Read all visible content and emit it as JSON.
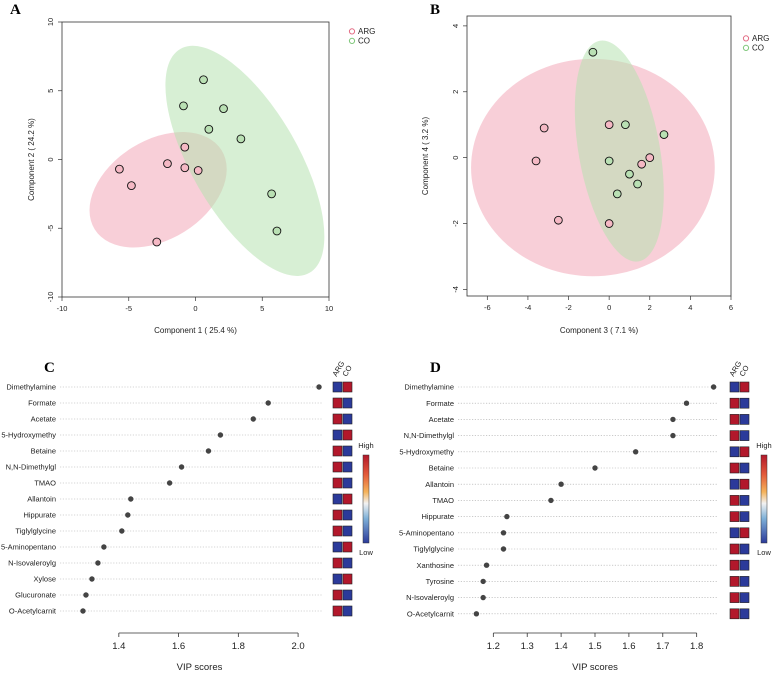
{
  "colors": {
    "arg": "#e36d85",
    "co": "#7fc77a",
    "arg_fill": "#f5b8c4",
    "co_fill": "#b9e0b3",
    "ellipse_arg": "#f3a8b8",
    "ellipse_co": "#b7e2b0",
    "high": "#b2182b",
    "low": "#2b3a9a",
    "dot": "#444444"
  },
  "chart_data": [
    {
      "id": "A",
      "letter": "A",
      "type": "scatter",
      "xlabel": "Component 1 ( 25.4 %)",
      "ylabel": "Component 2 ( 24.2 %)",
      "xlim": [
        -10,
        10
      ],
      "ylim": [
        -10,
        10
      ],
      "xticks": [
        -10,
        -5,
        0,
        5,
        10
      ],
      "yticks": [
        -10,
        -5,
        0,
        5,
        10
      ],
      "legend": [
        {
          "label": "ARG",
          "group": "arg"
        },
        {
          "label": "CO",
          "group": "co"
        }
      ],
      "series": [
        {
          "name": "ARG",
          "group": "arg",
          "points": [
            [
              -5.7,
              -0.7
            ],
            [
              -4.8,
              -1.9
            ],
            [
              -2.1,
              -0.3
            ],
            [
              -0.8,
              0.9
            ],
            [
              -0.8,
              -0.6
            ],
            [
              0.2,
              -0.8
            ],
            [
              -2.9,
              -6.0
            ]
          ]
        },
        {
          "name": "CO",
          "group": "co",
          "points": [
            [
              0.6,
              5.8
            ],
            [
              2.1,
              3.7
            ],
            [
              -0.9,
              3.9
            ],
            [
              1.0,
              2.2
            ],
            [
              3.4,
              1.5
            ],
            [
              5.7,
              -2.5
            ],
            [
              6.1,
              -5.2
            ]
          ]
        }
      ],
      "ellipses": [
        {
          "group": "arg",
          "cx": -2.8,
          "cy": -2.2,
          "rx": 5.6,
          "ry": 3.6,
          "angle": 32
        },
        {
          "group": "co",
          "cx": 3.7,
          "cy": -0.1,
          "rx": 4.0,
          "ry": 9.4,
          "angle": 30
        }
      ]
    },
    {
      "id": "B",
      "letter": "B",
      "type": "scatter",
      "xlabel": "Component 3 ( 7.1 %)",
      "ylabel": "Component 4 ( 3.2 %)",
      "xlim": [
        -7,
        6
      ],
      "ylim": [
        -4.2,
        4.3
      ],
      "xticks": [
        -6,
        -4,
        -2,
        0,
        2,
        4,
        6
      ],
      "yticks": [
        -4,
        -2,
        0,
        2,
        4
      ],
      "legend": [
        {
          "label": "ARG",
          "group": "arg"
        },
        {
          "label": "CO",
          "group": "co"
        }
      ],
      "series": [
        {
          "name": "ARG",
          "group": "arg",
          "points": [
            [
              -3.2,
              0.9
            ],
            [
              -3.6,
              -0.1
            ],
            [
              -2.5,
              -1.9
            ],
            [
              0.0,
              1.0
            ],
            [
              1.6,
              -0.2
            ],
            [
              2.0,
              0.0
            ],
            [
              0.0,
              -2.0
            ]
          ]
        },
        {
          "name": "CO",
          "group": "co",
          "points": [
            [
              -0.8,
              3.2
            ],
            [
              0.8,
              1.0
            ],
            [
              0.0,
              -0.1
            ],
            [
              1.0,
              -0.5
            ],
            [
              0.4,
              -1.1
            ],
            [
              1.4,
              -0.8
            ],
            [
              2.7,
              0.7
            ]
          ]
        }
      ],
      "ellipses": [
        {
          "group": "arg",
          "cx": -0.8,
          "cy": -0.3,
          "rx": 6.0,
          "ry": 3.3,
          "angle": 0
        },
        {
          "group": "co",
          "cx": 0.5,
          "cy": 0.2,
          "rx": 2.0,
          "ry": 3.4,
          "angle": 10
        }
      ]
    },
    {
      "id": "C",
      "letter": "C",
      "type": "dot",
      "xlabel": "VIP scores",
      "xlim": [
        1.26,
        2.08
      ],
      "xticks": [
        1.4,
        1.6,
        1.8,
        2.0
      ],
      "tick_labels": [
        "1.4",
        "1.6",
        "1.8",
        "2.0"
      ],
      "group_labels": [
        "ARG",
        "CO"
      ],
      "scale_high": "High",
      "scale_low": "Low",
      "items": [
        {
          "label": "Dimethylamine",
          "vip": 2.07,
          "arg": "low",
          "co": "high"
        },
        {
          "label": "Formate",
          "vip": 1.9,
          "arg": "high",
          "co": "low"
        },
        {
          "label": "Acetate",
          "vip": 1.85,
          "arg": "high",
          "co": "low"
        },
        {
          "label": "5-Hydroxymethy",
          "vip": 1.74,
          "arg": "low",
          "co": "high"
        },
        {
          "label": "Betaine",
          "vip": 1.7,
          "arg": "high",
          "co": "low"
        },
        {
          "label": "N,N-Dimethylgl",
          "vip": 1.61,
          "arg": "high",
          "co": "low"
        },
        {
          "label": "TMAO",
          "vip": 1.57,
          "arg": "high",
          "co": "low"
        },
        {
          "label": "Allantoin",
          "vip": 1.44,
          "arg": "low",
          "co": "high"
        },
        {
          "label": "Hippurate",
          "vip": 1.43,
          "arg": "high",
          "co": "low"
        },
        {
          "label": "Tiglylglycine",
          "vip": 1.41,
          "arg": "high",
          "co": "low"
        },
        {
          "label": "5-Aminopentano",
          "vip": 1.35,
          "arg": "low",
          "co": "high"
        },
        {
          "label": "N-Isovaleroylg",
          "vip": 1.33,
          "arg": "high",
          "co": "low"
        },
        {
          "label": "Xylose",
          "vip": 1.31,
          "arg": "low",
          "co": "high"
        },
        {
          "label": "Glucuronate",
          "vip": 1.29,
          "arg": "high",
          "co": "low"
        },
        {
          "label": "O-Acetylcarnit",
          "vip": 1.28,
          "arg": "high",
          "co": "low"
        }
      ]
    },
    {
      "id": "D",
      "letter": "D",
      "type": "dot",
      "xlabel": "VIP scores",
      "xlim": [
        1.14,
        1.86
      ],
      "xticks": [
        1.2,
        1.3,
        1.4,
        1.5,
        1.6,
        1.7,
        1.8
      ],
      "tick_labels": [
        "1.2",
        "1.3",
        "1.4",
        "1.5",
        "1.6",
        "1.7",
        "1.8"
      ],
      "group_labels": [
        "ARG",
        "CO"
      ],
      "scale_high": "High",
      "scale_low": "Low",
      "items": [
        {
          "label": "Dimethylamine",
          "vip": 1.85,
          "arg": "low",
          "co": "high"
        },
        {
          "label": "Formate",
          "vip": 1.77,
          "arg": "high",
          "co": "low"
        },
        {
          "label": "Acetate",
          "vip": 1.73,
          "arg": "high",
          "co": "low"
        },
        {
          "label": "N,N-Dimethylgl",
          "vip": 1.73,
          "arg": "high",
          "co": "low"
        },
        {
          "label": "5-Hydroxymethy",
          "vip": 1.62,
          "arg": "low",
          "co": "high"
        },
        {
          "label": "Betaine",
          "vip": 1.5,
          "arg": "high",
          "co": "low"
        },
        {
          "label": "Allantoin",
          "vip": 1.4,
          "arg": "low",
          "co": "high"
        },
        {
          "label": "TMAO",
          "vip": 1.37,
          "arg": "high",
          "co": "low"
        },
        {
          "label": "Hippurate",
          "vip": 1.24,
          "arg": "high",
          "co": "low"
        },
        {
          "label": "5-Aminopentano",
          "vip": 1.23,
          "arg": "low",
          "co": "high"
        },
        {
          "label": "Tiglylglycine",
          "vip": 1.23,
          "arg": "high",
          "co": "low"
        },
        {
          "label": "Xanthosine",
          "vip": 1.18,
          "arg": "high",
          "co": "low"
        },
        {
          "label": "Tyrosine",
          "vip": 1.17,
          "arg": "high",
          "co": "low"
        },
        {
          "label": "N-Isovaleroylg",
          "vip": 1.17,
          "arg": "high",
          "co": "low"
        },
        {
          "label": "O-Acetylcarnit",
          "vip": 1.15,
          "arg": "high",
          "co": "low"
        }
      ]
    }
  ]
}
